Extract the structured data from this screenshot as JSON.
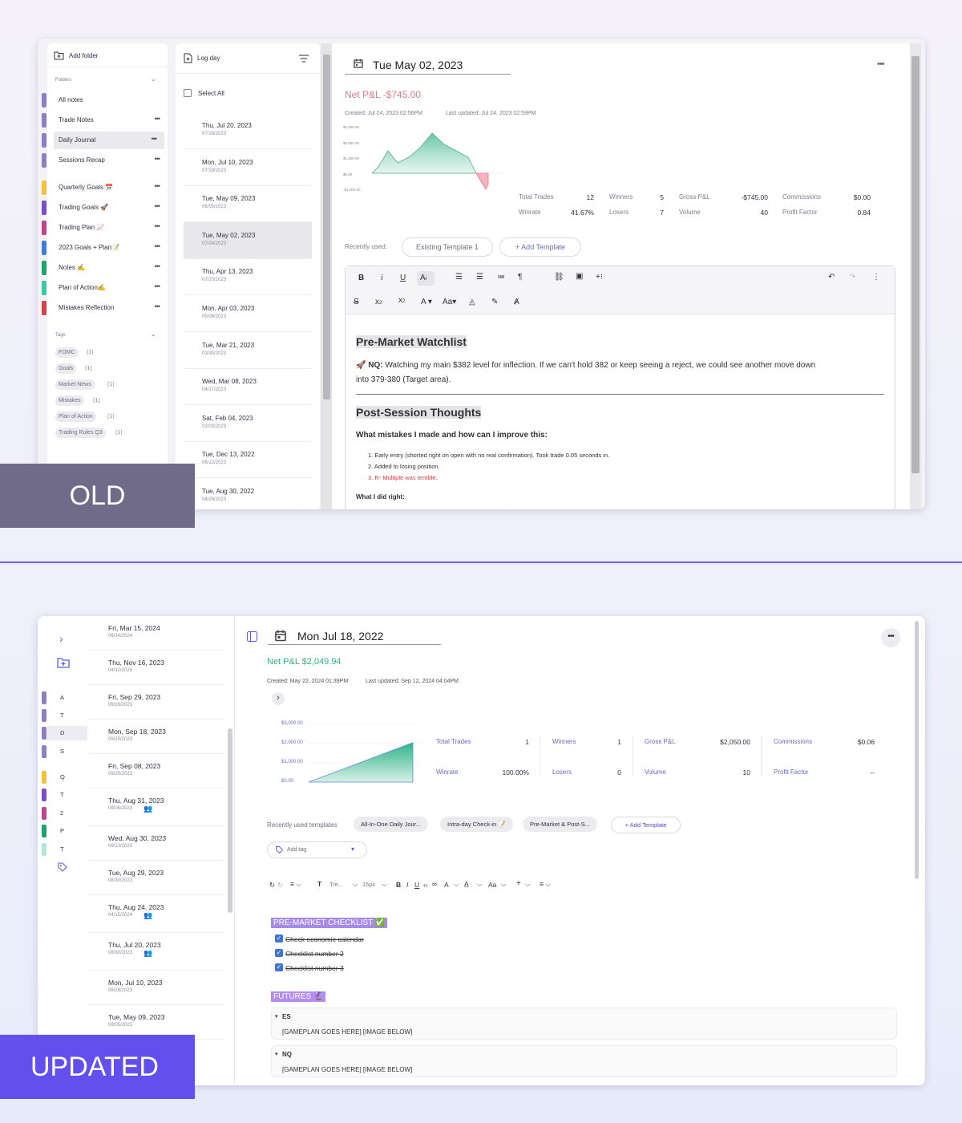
{
  "badges": {
    "old": "OLD",
    "updated": "UPDATED"
  },
  "old": {
    "sidebar": {
      "add_folder": "Add folder",
      "folders_title": "Folders",
      "folders": [
        {
          "label": "All notes",
          "color": "#8e7fc4"
        },
        {
          "label": "Trade Notes",
          "color": "#8e7fc4"
        },
        {
          "label": "Daily Journal",
          "color": "#8e7fc4"
        },
        {
          "label": "Sessions Recap",
          "color": "#8e7fc4"
        },
        {
          "label": "Quarterly Goals 📅",
          "color": "#f2c43d"
        },
        {
          "label": "Trading Goals 🚀",
          "color": "#7b4fc6"
        },
        {
          "label": "Trading Plan 📈",
          "color": "#c0438f"
        },
        {
          "label": "2023 Goals + Plan📝",
          "color": "#3d7fd6"
        },
        {
          "label": "Notes ✍️",
          "color": "#1fa36b"
        },
        {
          "label": "Plan of Action✍️",
          "color": "#3cc7a6"
        },
        {
          "label": "Mistakes Reflection",
          "color": "#d9414a"
        }
      ],
      "tags_title": "Tags",
      "tags": [
        {
          "label": "FOMC",
          "count": "(1)"
        },
        {
          "label": "Goals",
          "count": "(1)"
        },
        {
          "label": "Market News",
          "count": "(1)"
        },
        {
          "label": "Mistakes",
          "count": "(1)"
        },
        {
          "label": "Plan of Action",
          "count": "(1)"
        },
        {
          "label": "Trading Rules Q3",
          "count": "(1)"
        }
      ]
    },
    "log": {
      "log_day": "Log day",
      "select_all": "Select All",
      "items": [
        {
          "date": "Thu, Jul 20, 2023",
          "sub": "07/19/2023"
        },
        {
          "date": "Mon, Jul 10, 2023",
          "sub": "07/19/2023"
        },
        {
          "date": "Tue, May 09, 2023",
          "sub": "06/05/2023"
        },
        {
          "date": "Tue, May 02, 2023",
          "sub": "07/24/2023"
        },
        {
          "date": "Thu, Apr 13, 2023",
          "sub": "07/20/2023"
        },
        {
          "date": "Mon, Apr 03, 2023",
          "sub": "05/08/2023"
        },
        {
          "date": "Tue, Mar 21, 2023",
          "sub": "03/30/2023"
        },
        {
          "date": "Wed, Mar 08, 2023",
          "sub": "04/17/2023"
        },
        {
          "date": "Sat, Feb 04, 2023",
          "sub": "02/03/2023"
        },
        {
          "date": "Tue, Dec 13, 2022",
          "sub": "06/12/2023"
        },
        {
          "date": "Tue, Aug 30, 2022",
          "sub": "04/25/2023"
        }
      ]
    },
    "main": {
      "date": "Tue May 02, 2023",
      "net_pnl": "Net P&L -$745.00",
      "created": "Created: Jul 24, 2023 02:56PM",
      "updated": "Last updated: Jul 24, 2023 02:59PM",
      "chart_ticks": [
        "$1,000.00",
        "$0.000.00",
        "$1,000.00",
        "$0.00",
        "-$1,000.00"
      ],
      "stats": {
        "total_trades_label": "Total Trades",
        "total_trades": "12",
        "winrate_label": "Winrate",
        "winrate": "41.67%",
        "winners_label": "Winners",
        "winners": "5",
        "losers_label": "Losers",
        "losers": "7",
        "gross_label": "Gross P&L",
        "gross": "-$745.00",
        "volume_label": "Volume",
        "volume": "40",
        "commissions_label": "Commissions",
        "commissions": "$0.00",
        "profit_factor_label": "Profit Factor",
        "profit_factor": "0.84"
      },
      "recently_used": "Recently used:",
      "template_existing": "Existing Template 1",
      "template_add": "+ Add Template",
      "heading1": "Pre-Market Watchlist",
      "watch_label": "NQ:",
      "watch_text": "Watching my main $382 level for inflection. If we can't hold 382 or keep seeing a reject, we could see another move down",
      "watch_text2": "into 379-380 (Target area).",
      "heading2": "Post-Session Thoughts",
      "question1": "What mistakes I made and how can I improve this:",
      "mistakes": [
        "1. Early entry (shorted right on open with no real confirmation). Took trade 0.05 seconds in.",
        "2. Added to losing position.",
        "3. R- Multiple was terrible."
      ],
      "question2": "What I did right:"
    }
  },
  "updated": {
    "sidebar_letters": [
      {
        "letter": "A",
        "color": "#8e7fc4"
      },
      {
        "letter": "T",
        "color": "#8e7fc4"
      },
      {
        "letter": "D",
        "color": "#8e7fc4"
      },
      {
        "letter": "S",
        "color": "#8e7fc4"
      },
      {
        "letter": "Q",
        "color": "#f2c43d"
      },
      {
        "letter": "T",
        "color": "#7b4fc6"
      },
      {
        "letter": "2",
        "color": "#c0438f"
      },
      {
        "letter": "P",
        "color": "#1fa36b"
      },
      {
        "letter": "T",
        "color": "#b7e3dc"
      }
    ],
    "log": [
      {
        "date": "Fri, Mar 15, 2024",
        "sub": "06/14/2024"
      },
      {
        "date": "Thu, Nov 16, 2023",
        "sub": "04/12/2024"
      },
      {
        "date": "Fri, Sep 29, 2023",
        "sub": "09/29/2023"
      },
      {
        "date": "Mon, Sep 18, 2023",
        "sub": "09/25/2023"
      },
      {
        "date": "Fri, Sep 08, 2023",
        "sub": "09/25/2023"
      },
      {
        "date": "Thu, Aug 31, 2023",
        "sub": "09/06/2023"
      },
      {
        "date": "Wed, Aug 30, 2023",
        "sub": "09/13/2023"
      },
      {
        "date": "Tue, Aug 29, 2023",
        "sub": "08/30/2023"
      },
      {
        "date": "Thu, Aug 24, 2023",
        "sub": "04/15/2024"
      },
      {
        "date": "Thu, Jul 20, 2023",
        "sub": "08/30/2023"
      },
      {
        "date": "Mon, Jul 10, 2023",
        "sub": "08/28/2023"
      },
      {
        "date": "Tue, May 09, 2023",
        "sub": "09/05/2023"
      }
    ],
    "main": {
      "date": "Mon Jul 18, 2022",
      "net_pnl": "Net P&L $2,049.94",
      "created": "Created: May 22, 2024 01:39PM",
      "updated": "Last updated: Sep 12, 2024 04:04PM",
      "chart_ticks": [
        "$3,000.00",
        "$2,000.00",
        "$1,000.00",
        "$0.00"
      ],
      "stats": {
        "total_trades_label": "Total Trades",
        "total_trades": "1",
        "winrate_label": "Winrate",
        "winrate": "100.00%",
        "winners_label": "Winners",
        "winners": "1",
        "losers_label": "Losers",
        "losers": "0",
        "gross_label": "Gross P&L",
        "gross": "$2,050.00",
        "volume_label": "Volume",
        "volume": "10",
        "commissions_label": "Commissions",
        "commissions": "$0.06",
        "profit_factor_label": "Profit Factor",
        "profit_factor": "--"
      },
      "recently_used": "Recently used templates",
      "templates": [
        "All-In-One Daily Jour...",
        "Intra-day Check-in 📝",
        "Pre-Market & Post-S..."
      ],
      "template_add": "+ Add Template",
      "add_tag": "Add tag",
      "toolbar_font": "Tre...",
      "toolbar_size": "15px",
      "toolbar_aa": "Aa",
      "checklist_heading": "PRE-MARKET CHECKLIST ✅",
      "checklist": [
        "Check economic calendar",
        "Checklist number 2",
        "Checklist number 3"
      ],
      "futures_heading": "FUTURES 🔮",
      "accordions": [
        {
          "title": "ES",
          "body": "[GAMEPLAN GOES HERE] [IMAGE BELOW]"
        },
        {
          "title": "NQ",
          "body": "[GAMEPLAN GOES HERE] [IMAGE BELOW]"
        }
      ]
    }
  }
}
